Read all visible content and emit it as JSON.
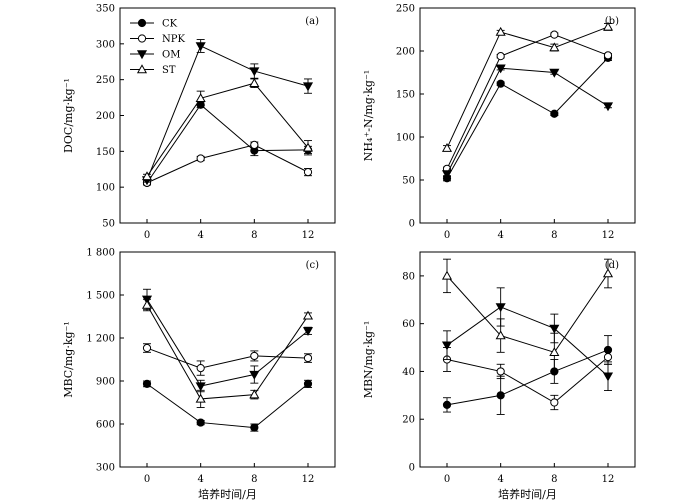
{
  "legend": [
    {
      "name": "CK",
      "marker": "circle-filled"
    },
    {
      "name": "NPK",
      "marker": "circle-open"
    },
    {
      "name": "OM",
      "marker": "triangle-down-filled"
    },
    {
      "name": "ST",
      "marker": "triangle-up-open"
    }
  ],
  "chart_data": [
    {
      "type": "line",
      "panel": "(a)",
      "ylabel": "DOC/mg·kg⁻¹",
      "xlabel": "",
      "x": [
        0,
        4,
        8,
        12
      ],
      "xticks": [
        "0",
        "4",
        "8",
        "12"
      ],
      "ylim": [
        50,
        350
      ],
      "yticks": [
        50,
        100,
        150,
        200,
        250,
        300,
        350
      ],
      "yticklabels": [
        "50",
        "100",
        "150",
        "200",
        "250",
        "300",
        "350"
      ],
      "legend_position": "top-left",
      "grid": false,
      "series": [
        {
          "name": "CK",
          "values": [
            106,
            215,
            151,
            152
          ],
          "errors": [
            3,
            4,
            7,
            5
          ]
        },
        {
          "name": "NPK",
          "values": [
            106,
            140,
            159,
            121
          ],
          "errors": [
            3,
            3,
            4,
            5
          ]
        },
        {
          "name": "OM",
          "values": [
            110,
            297,
            262,
            241
          ],
          "errors": [
            3,
            9,
            10,
            10
          ]
        },
        {
          "name": "ST",
          "values": [
            115,
            224,
            245,
            155
          ],
          "errors": [
            3,
            10,
            6,
            10
          ]
        }
      ]
    },
    {
      "type": "line",
      "panel": "(b)",
      "ylabel": "NH₄⁺-N/mg·kg⁻¹",
      "xlabel": "",
      "x": [
        0,
        4,
        8,
        12
      ],
      "xticks": [
        "0",
        "4",
        "8",
        "12"
      ],
      "ylim": [
        0,
        250
      ],
      "yticks": [
        0,
        50,
        100,
        150,
        200,
        250
      ],
      "yticklabels": [
        "0",
        "50",
        "100",
        "150",
        "200",
        "250"
      ],
      "grid": false,
      "series": [
        {
          "name": "CK",
          "values": [
            52,
            162,
            127,
            192
          ],
          "errors": [
            3,
            2,
            2,
            3
          ]
        },
        {
          "name": "NPK",
          "values": [
            63,
            194,
            219,
            195
          ],
          "errors": [
            2,
            2,
            2,
            2
          ]
        },
        {
          "name": "OM",
          "values": [
            57,
            180,
            175,
            136
          ],
          "errors": [
            3,
            2,
            2,
            2
          ]
        },
        {
          "name": "ST",
          "values": [
            87,
            222,
            204,
            228
          ],
          "errors": [
            3,
            2,
            4,
            4
          ]
        }
      ]
    },
    {
      "type": "line",
      "panel": "(c)",
      "ylabel": "MBC/mg·kg⁻¹",
      "xlabel": "培养时间/月",
      "x": [
        0,
        4,
        8,
        12
      ],
      "xticks": [
        "0",
        "4",
        "8",
        "12"
      ],
      "ylim": [
        300,
        1800
      ],
      "yticks": [
        300,
        600,
        900,
        1200,
        1500,
        1800
      ],
      "yticklabels": [
        "300",
        "600",
        "900",
        "1 200",
        "1 500",
        "1 800"
      ],
      "grid": false,
      "series": [
        {
          "name": "CK",
          "values": [
            880,
            610,
            575,
            880
          ],
          "errors": [
            20,
            15,
            25,
            25
          ]
        },
        {
          "name": "NPK",
          "values": [
            1130,
            990,
            1075,
            1060
          ],
          "errors": [
            30,
            50,
            35,
            30
          ]
        },
        {
          "name": "OM",
          "values": [
            1470,
            865,
            945,
            1250
          ],
          "errors": [
            70,
            40,
            60,
            25
          ]
        },
        {
          "name": "ST",
          "values": [
            1430,
            775,
            805,
            1355
          ],
          "errors": [
            40,
            60,
            30,
            20
          ]
        }
      ]
    },
    {
      "type": "line",
      "panel": "(d)",
      "ylabel": "MBN/mg·kg⁻¹",
      "xlabel": "培养时间/月",
      "x": [
        0,
        4,
        8,
        12
      ],
      "xticks": [
        "0",
        "4",
        "8",
        "12"
      ],
      "ylim": [
        0,
        90
      ],
      "yticks": [
        0,
        20,
        40,
        60,
        80
      ],
      "yticklabels": [
        "0",
        "20",
        "40",
        "60",
        "80"
      ],
      "grid": false,
      "series": [
        {
          "name": "CK",
          "values": [
            26,
            30,
            40,
            49
          ],
          "errors": [
            3,
            8,
            5,
            6
          ]
        },
        {
          "name": "NPK",
          "values": [
            45,
            40,
            27,
            46
          ],
          "errors": [
            5,
            3,
            3,
            3
          ]
        },
        {
          "name": "OM",
          "values": [
            51,
            67,
            58,
            38
          ],
          "errors": [
            6,
            8,
            6,
            6
          ]
        },
        {
          "name": "ST",
          "values": [
            80,
            55,
            48,
            81
          ],
          "errors": [
            7,
            7,
            8,
            6
          ]
        }
      ]
    }
  ]
}
